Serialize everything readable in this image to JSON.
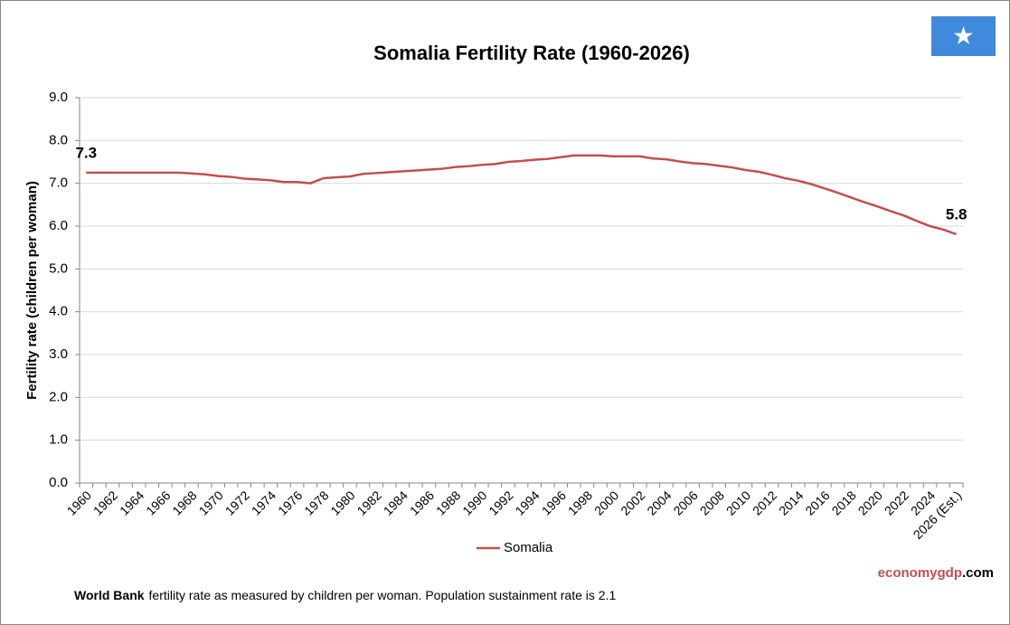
{
  "chart_data": {
    "type": "line",
    "title": "Somalia Fertility Rate (1960-2026)",
    "y_label": "Fertility rate (children per woman)",
    "categories": [
      "1960",
      null,
      "1962",
      null,
      "1964",
      null,
      "1966",
      null,
      "1968",
      null,
      "1970",
      null,
      "1972",
      null,
      "1974",
      null,
      "1976",
      null,
      "1978",
      null,
      "1980",
      null,
      "1982",
      null,
      "1984",
      null,
      "1986",
      null,
      "1988",
      null,
      "1990",
      null,
      "1992",
      null,
      "1994",
      null,
      "1996",
      null,
      "1998",
      null,
      "2000",
      null,
      "2002",
      null,
      "2004",
      null,
      "2006",
      null,
      "2008",
      null,
      "2010",
      null,
      "2012",
      null,
      "2014",
      null,
      "2016",
      null,
      "2018",
      null,
      "2020",
      null,
      "2022",
      null,
      "2024",
      null,
      "2026 (Est.)"
    ],
    "series": [
      {
        "name": "Somalia",
        "color": "#c0504d",
        "values": [
          7.25,
          7.25,
          7.25,
          7.25,
          7.25,
          7.25,
          7.25,
          7.25,
          7.23,
          7.21,
          7.17,
          7.15,
          7.11,
          7.09,
          7.07,
          7.03,
          7.03,
          7.0,
          7.12,
          7.14,
          7.16,
          7.22,
          7.24,
          7.26,
          7.28,
          7.3,
          7.32,
          7.34,
          7.38,
          7.4,
          7.43,
          7.45,
          7.5,
          7.52,
          7.55,
          7.57,
          7.61,
          7.65,
          7.65,
          7.65,
          7.63,
          7.63,
          7.63,
          7.58,
          7.56,
          7.51,
          7.47,
          7.45,
          7.41,
          7.37,
          7.31,
          7.27,
          7.2,
          7.12,
          7.06,
          6.98,
          6.88,
          6.78,
          6.67,
          6.56,
          6.46,
          6.35,
          6.25,
          6.12,
          6.0,
          5.92,
          5.81
        ],
        "value_labels": [
          "7.3",
          null,
          null,
          null,
          null,
          null,
          null,
          null,
          null,
          null,
          null,
          null,
          null,
          null,
          null,
          null,
          null,
          null,
          null,
          null,
          null,
          null,
          null,
          null,
          null,
          null,
          null,
          null,
          null,
          null,
          null,
          null,
          null,
          null,
          null,
          null,
          null,
          null,
          null,
          null,
          null,
          null,
          null,
          null,
          null,
          null,
          null,
          null,
          null,
          null,
          null,
          null,
          null,
          null,
          null,
          null,
          null,
          null,
          null,
          null,
          null,
          null,
          null,
          null,
          null,
          null,
          "5.8"
        ]
      }
    ],
    "ylim": [
      0,
      9
    ],
    "yticks": [
      {
        "value": 0,
        "label": "0.0"
      },
      {
        "value": 1,
        "label": "1.0"
      },
      {
        "value": 2,
        "label": "2.0"
      },
      {
        "value": 3,
        "label": "3.0"
      },
      {
        "value": 4,
        "label": "4.0"
      },
      {
        "value": 5,
        "label": "5.0"
      },
      {
        "value": 6,
        "label": "6.0"
      },
      {
        "value": 7,
        "label": "7.0"
      },
      {
        "value": 8,
        "label": "8.0"
      },
      {
        "value": 9,
        "label": "9.0"
      }
    ],
    "grid": true,
    "legend": "bottom",
    "brand": [
      "economygdp",
      ".com"
    ],
    "footnote": [
      "World Bank",
      "fertility rate as measured by children per woman.  Population sustainment  rate is 2.1"
    ]
  }
}
